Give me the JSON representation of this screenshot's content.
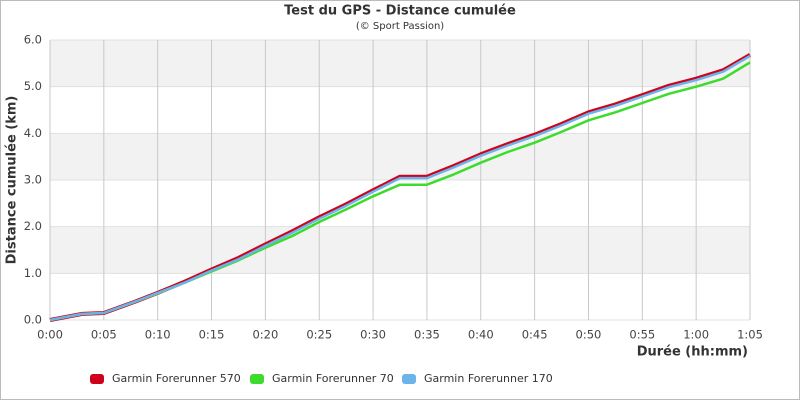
{
  "chart_data": {
    "type": "line",
    "title": "Test du GPS - Distance cumulée",
    "subtitle": "(© Sport Passion)",
    "x_label": "Durée (hh:mm)",
    "y_label": "Distance cumulée (km)",
    "x": [
      0,
      3,
      5,
      8,
      10,
      12.5,
      15,
      17.5,
      20,
      22.5,
      25,
      27.5,
      30,
      32.5,
      35,
      37.5,
      40,
      42.5,
      45,
      47.5,
      50,
      52.5,
      55,
      57.5,
      60,
      62.5,
      65
    ],
    "series": [
      {
        "name": "Garmin Forerunner 570",
        "color": "#d0021b",
        "values": [
          0,
          0.13,
          0.15,
          0.4,
          0.58,
          0.82,
          1.08,
          1.33,
          1.62,
          1.9,
          2.2,
          2.48,
          2.78,
          3.07,
          3.07,
          3.3,
          3.55,
          3.77,
          3.97,
          4.2,
          4.45,
          4.62,
          4.82,
          5.02,
          5.17,
          5.35,
          5.68
        ]
      },
      {
        "name": "Garmin Forerunner 70",
        "color": "#3ddc2c",
        "values": [
          0,
          0.13,
          0.15,
          0.4,
          0.57,
          0.8,
          1.04,
          1.28,
          1.55,
          1.8,
          2.1,
          2.37,
          2.65,
          2.9,
          2.9,
          3.12,
          3.37,
          3.6,
          3.8,
          4.03,
          4.28,
          4.45,
          4.65,
          4.85,
          5.0,
          5.17,
          5.52
        ]
      },
      {
        "name": "Garmin Forerunner 170",
        "color": "#6ab4ea",
        "values": [
          0,
          0.13,
          0.15,
          0.4,
          0.58,
          0.8,
          1.06,
          1.3,
          1.59,
          1.87,
          2.17,
          2.45,
          2.75,
          3.04,
          3.04,
          3.27,
          3.52,
          3.74,
          3.94,
          4.17,
          4.42,
          4.59,
          4.79,
          4.99,
          5.14,
          5.32,
          5.66
        ]
      }
    ],
    "xlim": [
      0,
      65
    ],
    "xticks": [
      {
        "value": 0,
        "label": "0:00"
      },
      {
        "value": 5,
        "label": "0:05"
      },
      {
        "value": 10,
        "label": "0:10"
      },
      {
        "value": 15,
        "label": "0:15"
      },
      {
        "value": 20,
        "label": "0:20"
      },
      {
        "value": 25,
        "label": "0:25"
      },
      {
        "value": 30,
        "label": "0:30"
      },
      {
        "value": 35,
        "label": "0:35"
      },
      {
        "value": 40,
        "label": "0:40"
      },
      {
        "value": 45,
        "label": "0:45"
      },
      {
        "value": 50,
        "label": "0:50"
      },
      {
        "value": 55,
        "label": "0:55"
      },
      {
        "value": 60,
        "label": "1:00"
      },
      {
        "value": 65,
        "label": "1:05"
      }
    ],
    "ylim": [
      0,
      6
    ],
    "yticks": [
      {
        "value": 0,
        "label": "0.0"
      },
      {
        "value": 1,
        "label": "1.0"
      },
      {
        "value": 2,
        "label": "2.0"
      },
      {
        "value": 3,
        "label": "3.0"
      },
      {
        "value": 4,
        "label": "4.0"
      },
      {
        "value": 5,
        "label": "5.0"
      },
      {
        "value": 6,
        "label": "6.0"
      }
    ],
    "grid": true,
    "legend": "bottom"
  }
}
